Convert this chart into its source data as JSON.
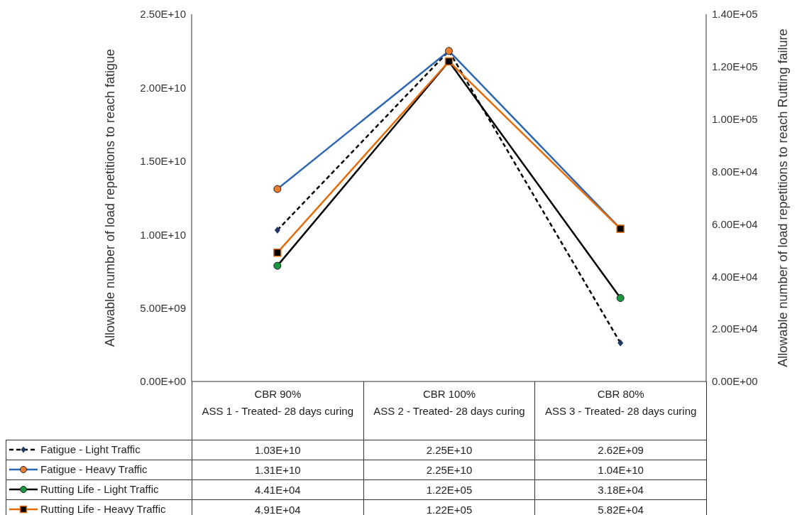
{
  "chart_data": {
    "type": "line",
    "ylabel": "Allowable number of load repetitions to reach fatigue",
    "y2label": "Allowable number of load repetitions to reach Rutting failure",
    "categories": [
      "CBR 90%\nASS 1 - Treated- 28 days curing",
      "CBR 100%\nASS 2 - Treated- 28 days curing",
      "CBR 80%\nASS 3 - Treated- 28 days curing"
    ],
    "ylim": [
      0,
      25000000000
    ],
    "yticks": [
      {
        "value": 0,
        "label": "0.00E+00"
      },
      {
        "value": 5000000000,
        "label": "5.00E+09"
      },
      {
        "value": 10000000000,
        "label": "1.00E+10"
      },
      {
        "value": 15000000000,
        "label": "1.50E+10"
      },
      {
        "value": 20000000000,
        "label": "2.00E+10"
      },
      {
        "value": 25000000000,
        "label": "2.50E+10"
      }
    ],
    "y2lim": [
      0,
      140000
    ],
    "y2ticks": [
      {
        "value": 0,
        "label": "0.00E+00"
      },
      {
        "value": 20000,
        "label": "2.00E+04"
      },
      {
        "value": 40000,
        "label": "4.00E+04"
      },
      {
        "value": 60000,
        "label": "6.00E+04"
      },
      {
        "value": 80000,
        "label": "8.00E+04"
      },
      {
        "value": 100000,
        "label": "1.00E+05"
      },
      {
        "value": 120000,
        "label": "1.20E+05"
      },
      {
        "value": 140000,
        "label": "1.40E+05"
      }
    ],
    "grid": false,
    "legend": "bottom",
    "series": [
      {
        "name": "Fatigue - Light Traffic",
        "color": "#000000",
        "colors": [
          "#1f3864",
          "#1f3864",
          "#1f3864"
        ],
        "marker": "diamond",
        "line_style": "dashed",
        "values": [
          10300000000,
          22500000000,
          2620000000
        ],
        "value_labels": [
          "1.03E+10",
          "2.25E+10",
          "2.62E+09"
        ]
      },
      {
        "name": "Fatigue - Heavy Traffic",
        "color": "#2e67b1",
        "colors": [
          "#ed7d31",
          "#ed7d31",
          "#ed7d31"
        ],
        "marker": "circle",
        "line_style": "solid",
        "values": [
          13100000000,
          22500000000,
          10400000000
        ],
        "value_labels": [
          "1.31E+10",
          "2.25E+10",
          "1.04E+10"
        ]
      },
      {
        "name": "Rutting Life - Light Traffic",
        "color": "#000000",
        "colors": [
          "#1a9641",
          "#1a9641",
          "#1a9641"
        ],
        "marker": "circle",
        "line_style": "solid",
        "axis": "y2",
        "values": [
          44100,
          122000,
          31800
        ],
        "value_labels": [
          "4.41E+04",
          "1.22E+05",
          "3.18E+04"
        ]
      },
      {
        "name": "Rutting Life - Heavy Traffic",
        "color": "#e46c0a",
        "colors": [
          "#000000",
          "#000000",
          "#000000"
        ],
        "marker": "square",
        "line_style": "solid",
        "axis": "y2",
        "values": [
          49100,
          122000,
          58200
        ],
        "value_labels": [
          "4.91E+04",
          "1.22E+05",
          "5.82E+04"
        ]
      }
    ]
  }
}
